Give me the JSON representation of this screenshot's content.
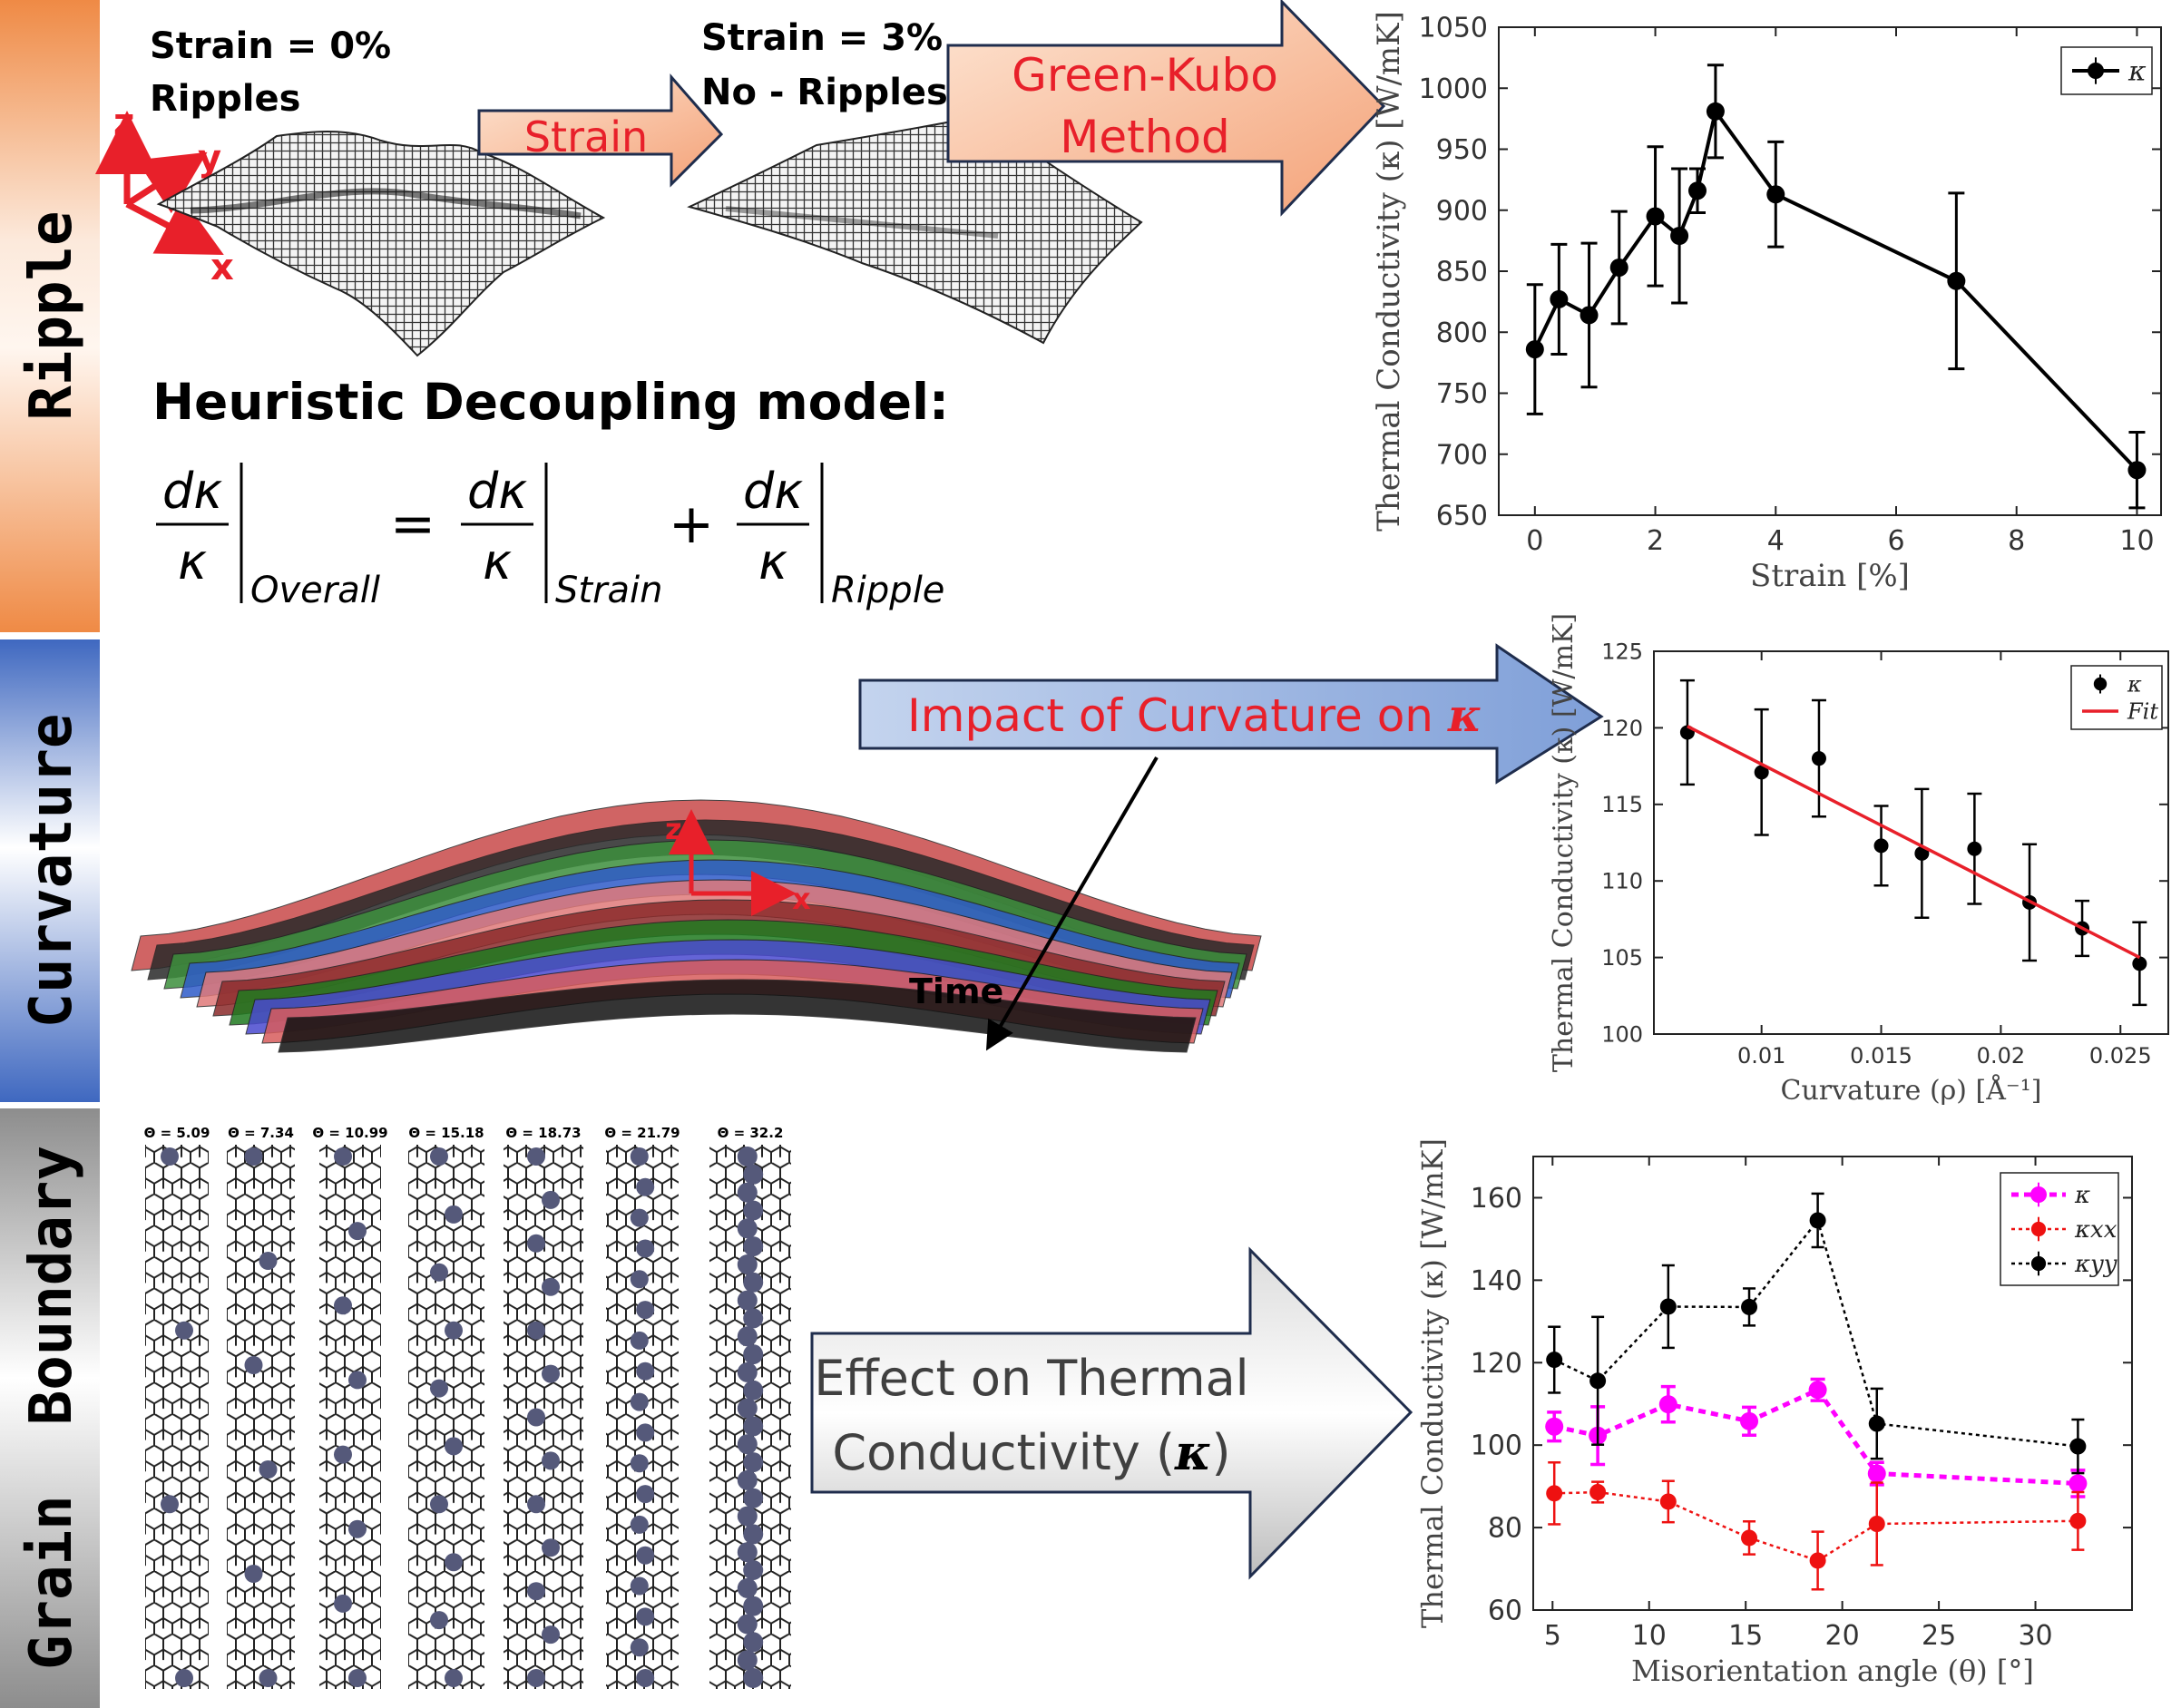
{
  "sections": {
    "ripple": "Ripple",
    "curvature": "Curvature",
    "grain_boundary": "Grain  Boundary"
  },
  "ripple_panel": {
    "left_label_line1": "Strain = 0%",
    "left_label_line2": "Ripples",
    "right_label_line1": "Strain = 3%",
    "right_label_line2": "No - Ripples",
    "axis_z": "z",
    "axis_y": "y",
    "axis_x": "x",
    "strain_arrow": "Strain",
    "gk_arrow_line1": "Green-Kubo",
    "gk_arrow_line2": "Method",
    "model_title": "Heuristic Decoupling model:",
    "eq_numerator": "dκ",
    "eq_denominator": "κ",
    "eq_sub_overall": "Overall",
    "eq_sub_strain": "Strain",
    "eq_sub_ripple": "Ripple",
    "eq_equals": "=",
    "eq_plus": "+"
  },
  "curvature_panel": {
    "arrow_text": "Impact of Curvature on ",
    "arrow_symbol": "κ",
    "axis_z": "z",
    "axis_x": "x",
    "time_label": "Time"
  },
  "gb_panel": {
    "angle_labels": [
      "Θ = 5.09",
      "Θ = 7.34",
      "Θ = 10.99",
      "Θ = 15.18",
      "Θ = 18.73",
      "Θ = 21.79",
      "Θ = 32.2"
    ],
    "arrow_line1": "Effect on Thermal",
    "arrow_line2": "Conductivity (",
    "arrow_symbol": "κ",
    "arrow_close": ")"
  },
  "colors": {
    "ripple_band": "#e57c3a",
    "curvature_band": "#4a72c4",
    "gb_band": "#8c8c8c",
    "arrow_red_text": "#e8202a",
    "axis_red": "#e8202a",
    "fit_red": "#e8202a",
    "magenta": "#ff00ff",
    "kxx_red": "#ee1111"
  },
  "chart_data": [
    {
      "type": "line",
      "xlabel": "Strain [%]",
      "ylabel": "Thermal Conductivity (κ) [W/mK]",
      "xlim": [
        -0.6,
        10.4
      ],
      "ylim": [
        650,
        1050
      ],
      "xticks": [
        "0",
        "2",
        "4",
        "6",
        "8",
        "10"
      ],
      "yticks": [
        "650",
        "700",
        "750",
        "800",
        "850",
        "900",
        "950",
        "1000",
        "1050"
      ],
      "legend_position": "top-right",
      "series": [
        {
          "name": "κ",
          "color": "#000000",
          "x": [
            0,
            0.4,
            0.9,
            1.4,
            2.0,
            2.4,
            2.7,
            3.0,
            4.0,
            7.0,
            10.0
          ],
          "y": [
            786,
            827,
            814,
            853,
            895,
            879,
            916,
            981,
            913,
            842,
            687
          ],
          "err": [
            53,
            45,
            59,
            46,
            57,
            55,
            18,
            38,
            43,
            72,
            31
          ]
        }
      ]
    },
    {
      "type": "scatter",
      "xlabel": "Curvature (ρ) [Å⁻¹]",
      "ylabel": "Thermal Conductivity (κ) [W/mK]",
      "xlim": [
        0.0055,
        0.027
      ],
      "ylim": [
        100,
        125
      ],
      "xticks": [
        "0.01",
        "0.015",
        "0.02",
        "0.025"
      ],
      "yticks": [
        "100",
        "105",
        "110",
        "115",
        "120",
        "125"
      ],
      "legend_position": "top-right",
      "series": [
        {
          "name": "κ",
          "color": "#000000",
          "x": [
            0.0069,
            0.01,
            0.0124,
            0.015,
            0.0167,
            0.0189,
            0.0212,
            0.0234,
            0.0258
          ],
          "y": [
            119.7,
            117.1,
            118.0,
            112.3,
            111.8,
            112.1,
            108.6,
            106.9,
            104.6
          ],
          "err": [
            3.4,
            4.1,
            3.8,
            2.6,
            4.2,
            3.6,
            3.8,
            1.8,
            2.7
          ]
        },
        {
          "name": "Fit",
          "color": "#e8202a",
          "x": [
            0.0069,
            0.0258
          ],
          "y": [
            120.1,
            105.0
          ]
        }
      ]
    },
    {
      "type": "line",
      "xlabel": "Misorientation angle (θ) [°]",
      "ylabel": "Thermal Conductivity (κ) [W/mK]",
      "xlim": [
        4,
        35
      ],
      "ylim": [
        60,
        170
      ],
      "xticks": [
        "5",
        "10",
        "15",
        "20",
        "25",
        "30"
      ],
      "yticks": [
        "60",
        "80",
        "100",
        "120",
        "140",
        "160"
      ],
      "legend_position": "top-right",
      "series": [
        {
          "name": "κ",
          "color": "#ff00ff",
          "x": [
            5.09,
            7.34,
            10.99,
            15.18,
            18.73,
            21.79,
            32.2
          ],
          "y": [
            104.5,
            102.3,
            109.9,
            105.8,
            113.4,
            93.1,
            90.7
          ],
          "err": [
            3.5,
            7.0,
            4.3,
            3.4,
            2.6,
            2.7,
            3.2
          ]
        },
        {
          "name": "κxx",
          "color": "#ee1111",
          "x": [
            5.09,
            7.34,
            10.99,
            15.18,
            18.73,
            21.79,
            32.2
          ],
          "y": [
            88.3,
            88.6,
            86.3,
            77.5,
            72.0,
            80.9,
            81.6
          ],
          "err": [
            7.5,
            2.5,
            5.0,
            4.0,
            7.0,
            10.0,
            7.0
          ]
        },
        {
          "name": "κyy",
          "color": "#000000",
          "x": [
            5.09,
            7.34,
            10.99,
            15.18,
            18.73,
            21.79,
            32.2
          ],
          "y": [
            120.7,
            115.6,
            133.6,
            133.5,
            154.5,
            105.2,
            99.7
          ],
          "err": [
            8.0,
            15.5,
            10.0,
            4.5,
            6.5,
            8.5,
            6.5
          ]
        }
      ]
    }
  ]
}
